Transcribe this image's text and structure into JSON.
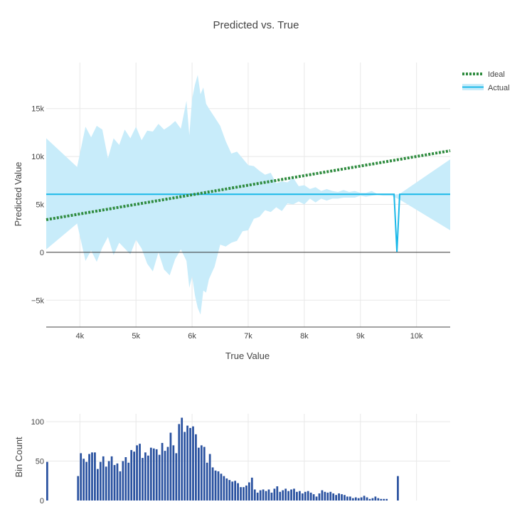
{
  "chart_data": [
    {
      "type": "line",
      "title": "Predicted vs. True",
      "xlabel": "True Value",
      "ylabel": "Predicted Value",
      "xlim": [
        3400,
        10600
      ],
      "ylim": [
        -7800,
        19800
      ],
      "grid": true,
      "legend_position": "top-right",
      "x_ticks": [
        4000,
        5000,
        6000,
        7000,
        8000,
        9000,
        10000
      ],
      "x_tick_labels": [
        "4k",
        "5k",
        "6k",
        "7k",
        "8k",
        "9k",
        "10k"
      ],
      "y_ticks": [
        -5000,
        0,
        5000,
        10000,
        15000
      ],
      "y_tick_labels": [
        "−5k",
        "0",
        "5k",
        "10k",
        "15k"
      ],
      "series": [
        {
          "name": "Ideal",
          "style": "dotted",
          "color": "#2e8b3e",
          "x": [
            3400,
            10600
          ],
          "y": [
            3400,
            10600
          ]
        },
        {
          "name": "Actual",
          "style": "solid",
          "color": "#1ab8e8",
          "band_color": "#c8ecfa",
          "x": [
            3400,
            9550,
            9600,
            9650,
            9700,
            10600
          ],
          "y": [
            6050,
            6050,
            6050,
            50,
            6050,
            6050
          ]
        }
      ],
      "band": {
        "x": [
          3400,
          3950,
          4100,
          4200,
          4300,
          4400,
          4500,
          4600,
          4700,
          4800,
          4900,
          5000,
          5100,
          5200,
          5300,
          5400,
          5500,
          5600,
          5700,
          5800,
          5900,
          5950,
          6000,
          6050,
          6100,
          6150,
          6200,
          6250,
          6300,
          6400,
          6500,
          6600,
          6700,
          6800,
          6900,
          7000,
          7100,
          7200,
          7300,
          7400,
          7500,
          7600,
          7700,
          7800,
          7900,
          8000,
          8100,
          8200,
          8300,
          8400,
          8500,
          8600,
          8700,
          8800,
          8900,
          9000,
          9100,
          9200,
          9300,
          9400,
          9500,
          9550,
          9700,
          10600
        ],
        "upper": [
          11900,
          8900,
          13100,
          12000,
          13200,
          12800,
          9800,
          11900,
          11200,
          12800,
          11900,
          13100,
          11700,
          12700,
          12600,
          13400,
          12800,
          13200,
          13700,
          12900,
          15800,
          12200,
          16000,
          17500,
          18500,
          16500,
          17200,
          15500,
          15000,
          14100,
          13200,
          11600,
          10300,
          10500,
          9800,
          9100,
          9000,
          8500,
          8100,
          8300,
          7200,
          7400,
          7300,
          7800,
          6900,
          7000,
          6600,
          6800,
          6400,
          6600,
          6400,
          6300,
          6500,
          6300,
          6400,
          6200,
          6200,
          6400,
          6100,
          6100,
          6000,
          6000,
          6100,
          9700
        ],
        "lower": [
          300,
          3000,
          -900,
          200,
          -1000,
          500,
          1600,
          -300,
          1000,
          400,
          -200,
          1300,
          400,
          -1200,
          -2000,
          0,
          -1800,
          -2400,
          -700,
          300,
          -900,
          -3700,
          -2500,
          -4500,
          -5800,
          -6500,
          -4000,
          -4200,
          -2800,
          -1500,
          800,
          600,
          1000,
          1200,
          2200,
          2300,
          3500,
          3700,
          4400,
          4200,
          4700,
          4300,
          5100,
          5000,
          5300,
          5000,
          5600,
          5200,
          5600,
          5400,
          5600,
          5600,
          5700,
          5700,
          5700,
          5900,
          5800,
          5900,
          6000,
          5900,
          5900,
          5900,
          5500,
          2300
        ]
      }
    },
    {
      "type": "bar",
      "ylabel": "Bin Count",
      "xlim": [
        3400,
        10600
      ],
      "ylim": [
        0,
        110
      ],
      "grid": true,
      "y_ticks": [
        0,
        50,
        100
      ],
      "y_tick_labels": [
        "0",
        "50",
        "100"
      ],
      "color": "#2a52a0",
      "bins_start": [
        3400,
        3950,
        4000,
        4050,
        4100,
        4150,
        4200,
        4250,
        4300,
        4350,
        4400,
        4450,
        4500,
        4550,
        4600,
        4650,
        4700,
        4750,
        4800,
        4850,
        4900,
        4950,
        5000,
        5050,
        5100,
        5150,
        5200,
        5250,
        5300,
        5350,
        5400,
        5450,
        5500,
        5550,
        5600,
        5650,
        5700,
        5750,
        5800,
        5850,
        5900,
        5950,
        6000,
        6050,
        6100,
        6150,
        6200,
        6250,
        6300,
        6350,
        6400,
        6450,
        6500,
        6550,
        6600,
        6650,
        6700,
        6750,
        6800,
        6850,
        6900,
        6950,
        7000,
        7050,
        7100,
        7150,
        7200,
        7250,
        7300,
        7350,
        7400,
        7450,
        7500,
        7550,
        7600,
        7650,
        7700,
        7750,
        7800,
        7850,
        7900,
        7950,
        8000,
        8050,
        8100,
        8150,
        8200,
        8250,
        8300,
        8350,
        8400,
        8450,
        8500,
        8550,
        8600,
        8650,
        8700,
        8750,
        8800,
        8850,
        8900,
        8950,
        9000,
        9050,
        9100,
        9150,
        9200,
        9250,
        9300,
        9350,
        9400,
        9450,
        9500,
        9550,
        9600,
        9650,
        9700,
        10550
      ],
      "counts": [
        49,
        31,
        60,
        53,
        49,
        59,
        61,
        61,
        40,
        49,
        56,
        43,
        50,
        56,
        45,
        47,
        37,
        50,
        55,
        48,
        64,
        62,
        70,
        72,
        54,
        61,
        57,
        67,
        66,
        65,
        58,
        73,
        63,
        68,
        86,
        70,
        60,
        97,
        105,
        87,
        95,
        92,
        94,
        84,
        67,
        70,
        68,
        48,
        59,
        42,
        38,
        37,
        34,
        31,
        28,
        26,
        24,
        25,
        22,
        17,
        17,
        19,
        23,
        29,
        14,
        10,
        13,
        14,
        12,
        14,
        10,
        15,
        18,
        11,
        13,
        15,
        12,
        14,
        15,
        11,
        12,
        9,
        11,
        12,
        10,
        8,
        5,
        9,
        13,
        11,
        10,
        11,
        9,
        7,
        9,
        8,
        7,
        5,
        5,
        3,
        4,
        3,
        4,
        6,
        4,
        2,
        3,
        5,
        3,
        2,
        2,
        2,
        0,
        0,
        0,
        31
      ]
    }
  ]
}
